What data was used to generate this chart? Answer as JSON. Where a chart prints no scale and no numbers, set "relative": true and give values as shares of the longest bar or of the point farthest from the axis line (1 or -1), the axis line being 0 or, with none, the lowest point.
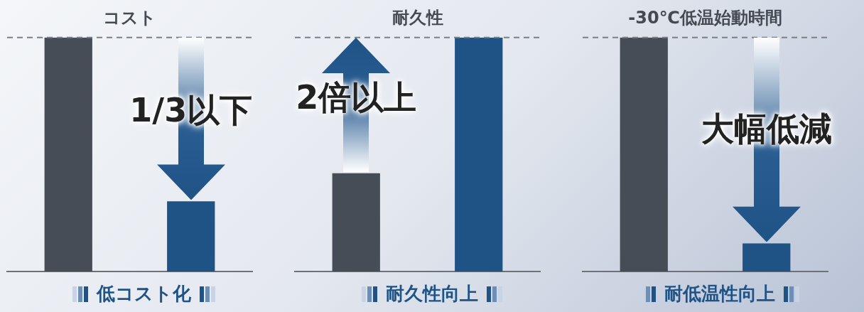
{
  "chart_data": [
    {
      "type": "bar",
      "title": "コスト",
      "xlabel": "低コスト化",
      "relative": true,
      "categories": [
        null,
        null
      ],
      "values": [
        1,
        0.3
      ],
      "colors": [
        "#474d57",
        "#1f5285"
      ],
      "ref_lines": [
        {
          "axis": "y",
          "value": 1,
          "color": "#7a7f88",
          "line_style": "dashed"
        }
      ],
      "annotations": [
        "1/3以下"
      ]
    },
    {
      "type": "bar",
      "title": "耐久性",
      "xlabel": "耐久性向上",
      "relative": true,
      "categories": [
        null,
        null
      ],
      "values": [
        0.42,
        1
      ],
      "colors": [
        "#474d57",
        "#1f5285"
      ],
      "ref_lines": [
        {
          "axis": "y",
          "value": 1,
          "color": "#7a7f88",
          "line_style": "dashed"
        }
      ],
      "annotations": [
        "2倍以上"
      ]
    },
    {
      "type": "bar",
      "title": "-30℃低温始動時間",
      "xlabel": "耐低温性向上",
      "relative": true,
      "categories": [
        null,
        null
      ],
      "values": [
        1,
        0.12
      ],
      "colors": [
        "#474d57",
        "#1f5285"
      ],
      "ref_lines": [
        {
          "axis": "y",
          "value": 1,
          "color": "#7a7f88",
          "line_style": "dashed"
        }
      ],
      "annotations": [
        "大幅低減"
      ]
    }
  ]
}
